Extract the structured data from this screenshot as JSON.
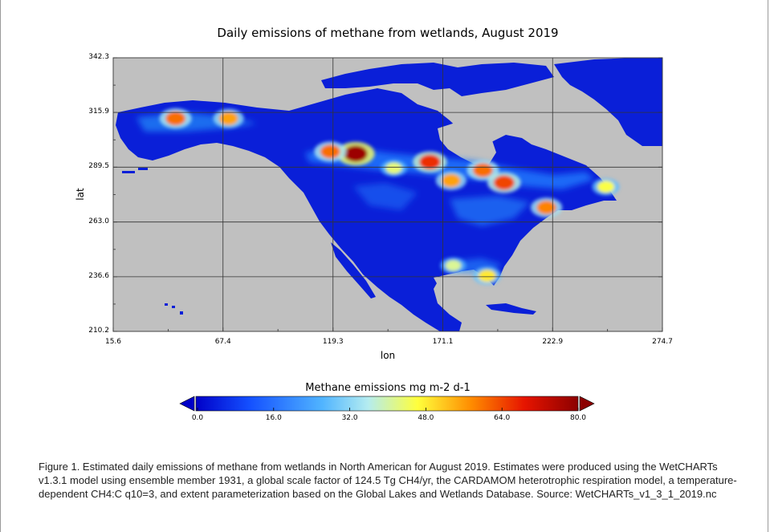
{
  "chart_data": {
    "type": "heatmap",
    "title": "Daily emissions of methane from wetlands, August 2019",
    "xlabel": "lon",
    "ylabel": "lat",
    "x_ticks": [
      "15.6",
      "67.4",
      "119.3",
      "171.1",
      "222.9",
      "274.7"
    ],
    "y_ticks": [
      "342.3",
      "315.9",
      "289.5",
      "263.0",
      "236.6",
      "210.2"
    ],
    "xlim": [
      15.6,
      274.7
    ],
    "ylim": [
      210.2,
      342.3
    ],
    "grid": true,
    "background_color": "#c0c0c0",
    "colorbar": {
      "title": "Methane emissions mg m-2 d-1",
      "ticks": [
        "0.0",
        "16.0",
        "32.0",
        "48.0",
        "64.0",
        "80.0"
      ],
      "range": [
        0,
        80
      ],
      "colors": [
        "#0000c8",
        "#1450ff",
        "#50b4ff",
        "#b4ecf0",
        "#ffff3c",
        "#ff8c00",
        "#e61400",
        "#8c0000"
      ]
    },
    "hotspots": [
      {
        "x": 130,
        "y": 296,
        "value": 78
      },
      {
        "x": 118,
        "y": 297,
        "value": 60
      },
      {
        "x": 165,
        "y": 292,
        "value": 66
      },
      {
        "x": 190,
        "y": 288,
        "value": 60
      },
      {
        "x": 200,
        "y": 282,
        "value": 64
      },
      {
        "x": 175,
        "y": 283,
        "value": 55
      },
      {
        "x": 220,
        "y": 270,
        "value": 58
      },
      {
        "x": 248,
        "y": 280,
        "value": 45
      },
      {
        "x": 45,
        "y": 313,
        "value": 60
      },
      {
        "x": 70,
        "y": 313,
        "value": 55
      },
      {
        "x": 176,
        "y": 242,
        "value": 40
      },
      {
        "x": 192,
        "y": 237,
        "value": 48
      },
      {
        "x": 148,
        "y": 289,
        "value": 42
      }
    ]
  },
  "caption": "Figure 1. Estimated daily emissions of methane from wetlands in North American for August 2019. Estimates were produced using the WetCHARTs v1.3.1 model using ensemble member 1931, a global scale factor of 124.5 Tg CH4/yr, the CARDAMOM heterotrophic respiration model, a temperature-dependent CH4:C q10=3, and extent parameterization based on the Global Lakes and Wetlands Database. Source: WetCHARTs_v1_3_1_2019.nc"
}
